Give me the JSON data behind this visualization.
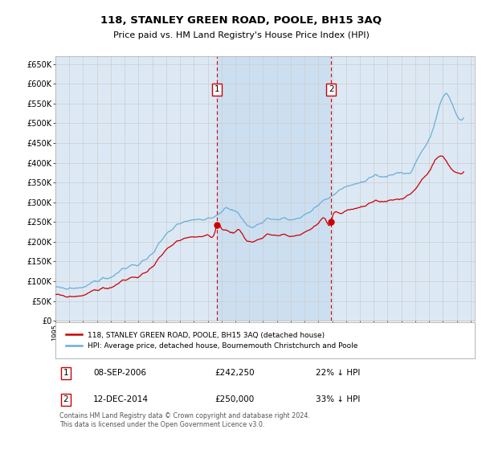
{
  "title": "118, STANLEY GREEN ROAD, POOLE, BH15 3AQ",
  "subtitle": "Price paid vs. HM Land Registry's House Price Index (HPI)",
  "background_color": "#ffffff",
  "plot_bg_color": "#dce9f5",
  "grid_color": "#cccccc",
  "ylim": [
    0,
    670000
  ],
  "yticks": [
    0,
    50000,
    100000,
    150000,
    200000,
    250000,
    300000,
    350000,
    400000,
    450000,
    500000,
    550000,
    600000,
    650000
  ],
  "ytick_labels": [
    "£0",
    "£50K",
    "£100K",
    "£150K",
    "£200K",
    "£250K",
    "£300K",
    "£350K",
    "£400K",
    "£450K",
    "£500K",
    "£550K",
    "£600K",
    "£650K"
  ],
  "sale1_date": 2006.67,
  "sale1_price": 242250,
  "sale1_label": "1",
  "sale2_date": 2014.92,
  "sale2_price": 250000,
  "sale2_label": "2",
  "sale_color": "#cc0000",
  "vline_color": "#cc0000",
  "hpi_line_color": "#6baed6",
  "price_line_color": "#cc0000",
  "shade_color": "#c6dcf0",
  "legend_label1": "118, STANLEY GREEN ROAD, POOLE, BH15 3AQ (detached house)",
  "legend_label2": "HPI: Average price, detached house, Bournemouth Christchurch and Poole",
  "table_row1": [
    "1",
    "08-SEP-2006",
    "£242,250",
    "22% ↓ HPI"
  ],
  "table_row2": [
    "2",
    "12-DEC-2014",
    "£250,000",
    "33% ↓ HPI"
  ],
  "footnote": "Contains HM Land Registry data © Crown copyright and database right 2024.\nThis data is licensed under the Open Government Licence v3.0.",
  "xlim_left": 1995.0,
  "xlim_right": 2025.3
}
